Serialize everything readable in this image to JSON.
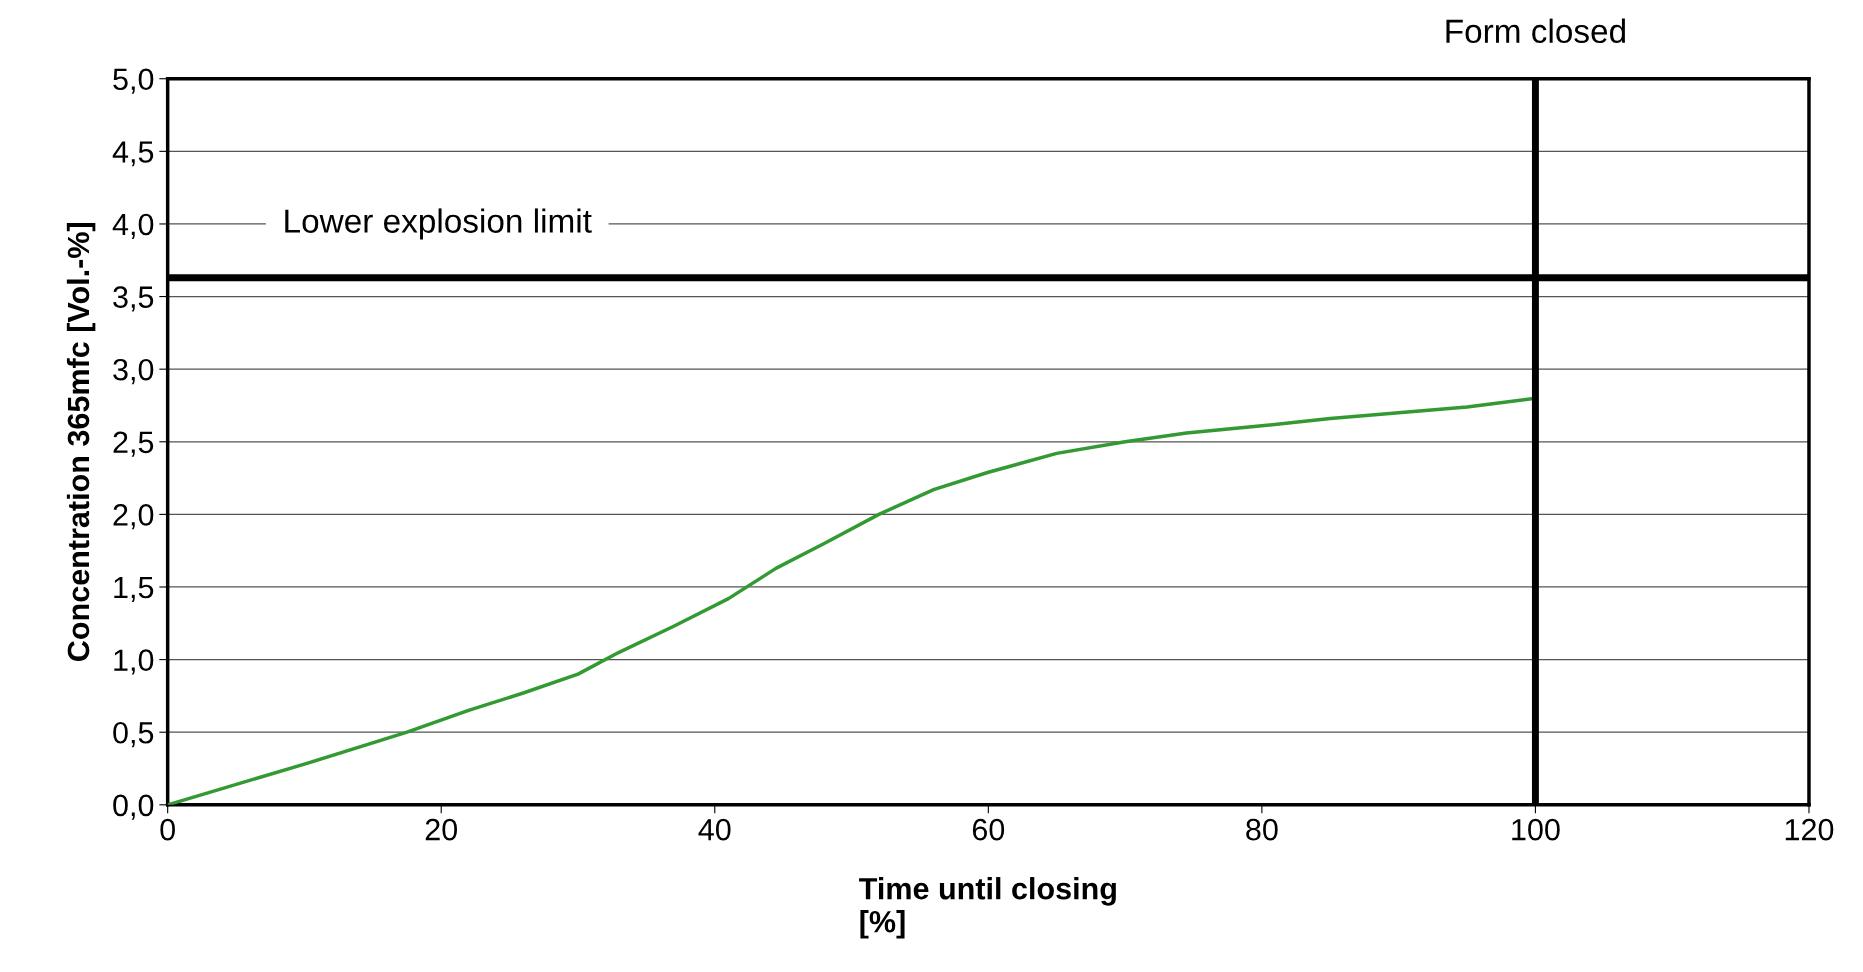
{
  "chart_data": {
    "type": "line",
    "xlabel": "Time until closing\n[%]",
    "ylabel": "Concentration 365mfc [Vol.-%]",
    "x": [
      0,
      10,
      17.5,
      22,
      26,
      30,
      33,
      37,
      41,
      44.5,
      48,
      52,
      56,
      60,
      65,
      70,
      74.5,
      80,
      85,
      90,
      95,
      100
    ],
    "series": [
      {
        "color": "#339933",
        "values": [
          0,
          0.28,
          0.5,
          0.65,
          0.77,
          0.9,
          1.05,
          1.23,
          1.42,
          1.63,
          1.8,
          2.0,
          2.17,
          2.29,
          2.42,
          2.5,
          2.56,
          2.61,
          2.66,
          2.7,
          2.74,
          2.8
        ]
      }
    ],
    "xlim": [
      0,
      120
    ],
    "xticks": [
      0,
      20,
      40,
      60,
      80,
      100,
      120
    ],
    "ylim": [
      0,
      5
    ],
    "yticks": [
      {
        "value": 0,
        "label": "0,0"
      },
      {
        "value": 0.5,
        "label": "0,5"
      },
      {
        "value": 1,
        "label": "1,0"
      },
      {
        "value": 1.5,
        "label": "1,5"
      },
      {
        "value": 2,
        "label": "2,0"
      },
      {
        "value": 2.5,
        "label": "2,5"
      },
      {
        "value": 3,
        "label": "3,0"
      },
      {
        "value": 3.5,
        "label": "3,5"
      },
      {
        "value": 4,
        "label": "4,0"
      },
      {
        "value": 4.5,
        "label": "4,5"
      },
      {
        "value": 5,
        "label": "5,0"
      }
    ],
    "grid": "y",
    "legend": false,
    "marker": "none",
    "line_style": "solid",
    "ref_lines": [
      {
        "axis": "y",
        "value": 3.63,
        "label": "Lower explosion limit",
        "color": "#000000"
      },
      {
        "axis": "x",
        "value": 100,
        "label": "Form closed",
        "color": "#000000"
      }
    ]
  }
}
